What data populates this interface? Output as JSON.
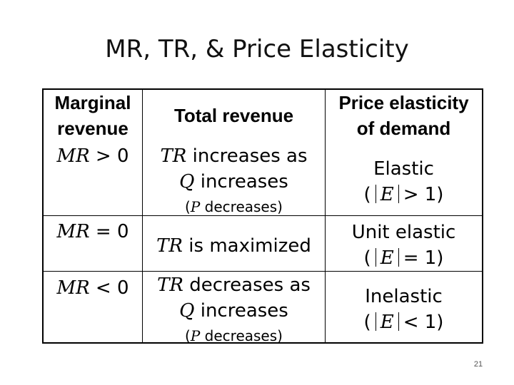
{
  "slide": {
    "title": "MR, TR, & Price Elasticity",
    "page_number": "21"
  },
  "table": {
    "headers": {
      "mr": [
        "Marginal",
        "revenue"
      ],
      "tr": "Total revenue",
      "elasticity": [
        "Price elasticity",
        "of demand"
      ]
    },
    "rows": [
      {
        "mr_var": "MR",
        "mr_rel": " > 0",
        "tr_lines": [
          {
            "var": "TR",
            "text": " increases as"
          },
          {
            "var": "Q",
            "text": " increases"
          }
        ],
        "tr_note": {
          "open": "(",
          "var": "P",
          "text": " decreases)"
        },
        "el_label": "Elastic",
        "el_formula": {
          "open": "(",
          "var": "E",
          "rel": "> 1)"
        }
      },
      {
        "mr_var": "MR",
        "mr_rel": " = 0",
        "tr_lines": [
          {
            "var": "TR",
            "text": " is maximized"
          }
        ],
        "el_label": "Unit elastic",
        "el_formula": {
          "open": "(",
          "var": "E",
          "rel": "= 1)"
        }
      },
      {
        "mr_var": "MR",
        "mr_rel": " < 0",
        "tr_lines": [
          {
            "var": "TR",
            "text": " decreases as"
          },
          {
            "var": "Q",
            "text": " increases"
          }
        ],
        "tr_note": {
          "open": "(",
          "var": "P",
          "text": " decreases)"
        },
        "el_label": "Inelastic",
        "el_formula": {
          "open": "(",
          "var": "E",
          "rel": "< 1)"
        }
      }
    ]
  }
}
